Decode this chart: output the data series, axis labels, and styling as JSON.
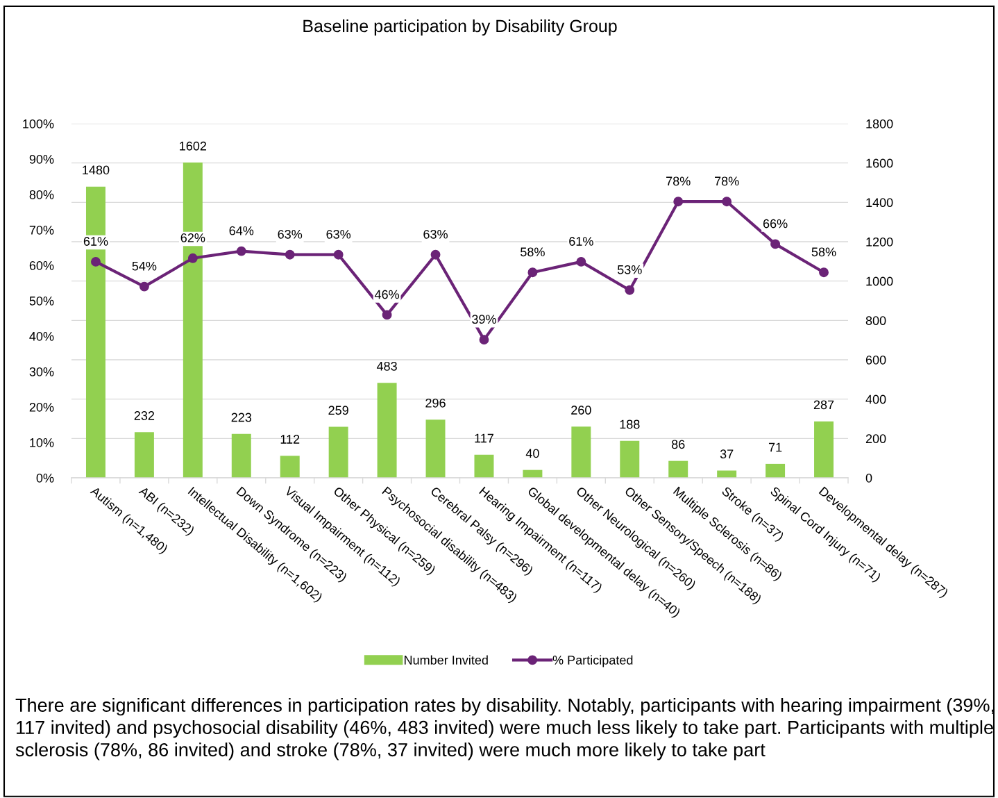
{
  "chart_data": {
    "type": "bar",
    "title": "Baseline participation by Disability Group",
    "categories": [
      "Autism (n=1,480)",
      "ABI (n=232)",
      "Intellectual Disability (n=1,602)",
      "Down Syndrome (n=223)",
      "Visual Impairment (n=112)",
      "Other Physical (n=259)",
      "Psychosocial disability (n=483)",
      "Cerebral Palsy (n=296)",
      "Hearing Impairment (n=117)",
      "Global developmental delay (n=40)",
      "Other Neurological (n=260)",
      "Other Sensory/Speech (n=188)",
      "Multiple Sclerosis (n=86)",
      "Stroke (n=37)",
      "Spinal Cord Injury (n=71)",
      "Developmental delay (n=287)"
    ],
    "series": [
      {
        "name": "Number Invited",
        "axis": "y2",
        "color": "#92d050",
        "values": [
          1480,
          232,
          1602,
          223,
          112,
          259,
          483,
          296,
          117,
          40,
          260,
          188,
          86,
          37,
          71,
          287
        ],
        "value_labels": [
          "1480",
          "232",
          "1602",
          "223",
          "112",
          "259",
          "483",
          "296",
          "117",
          "40",
          "260",
          "188",
          "86",
          "37",
          "71",
          "287"
        ]
      },
      {
        "name": "% Participated",
        "type": "line",
        "axis": "y",
        "color": "#6b2377",
        "marker": "circle",
        "values": [
          61,
          54,
          62,
          64,
          63,
          63,
          46,
          63,
          39,
          58,
          61,
          53,
          78,
          78,
          66,
          58
        ],
        "value_labels": [
          "61%",
          "54%",
          "62%",
          "64%",
          "63%",
          "63%",
          "46%",
          "63%",
          "39%",
          "58%",
          "61%",
          "53%",
          "78%",
          "78%",
          "66%",
          "58%"
        ]
      }
    ],
    "ylim": [
      0,
      100
    ],
    "yticks": [
      {
        "value": 0,
        "label": "0%"
      },
      {
        "value": 10,
        "label": "10%"
      },
      {
        "value": 20,
        "label": "20%"
      },
      {
        "value": 30,
        "label": "30%"
      },
      {
        "value": 40,
        "label": "40%"
      },
      {
        "value": 50,
        "label": "50%"
      },
      {
        "value": 60,
        "label": "60%"
      },
      {
        "value": 70,
        "label": "70%"
      },
      {
        "value": 80,
        "label": "80%"
      },
      {
        "value": 90,
        "label": "90%"
      },
      {
        "value": 100,
        "label": "100%"
      }
    ],
    "y2lim": [
      0,
      1800
    ],
    "y2ticks": [
      0,
      200,
      400,
      600,
      800,
      1000,
      1200,
      1400,
      1600,
      1800
    ],
    "grid": "y2",
    "legend": "bottom",
    "annotations": [
      "There are significant differences in participation rates by disability. Notably, participants with hearing impairment (39%, 117 invited) and psychosocial disability (46%, 483 invited) were much less likely to take part. Participants with multiple sclerosis (78%, 86 invited) and stroke (78%, 37 invited) were much more likely to take part"
    ]
  }
}
